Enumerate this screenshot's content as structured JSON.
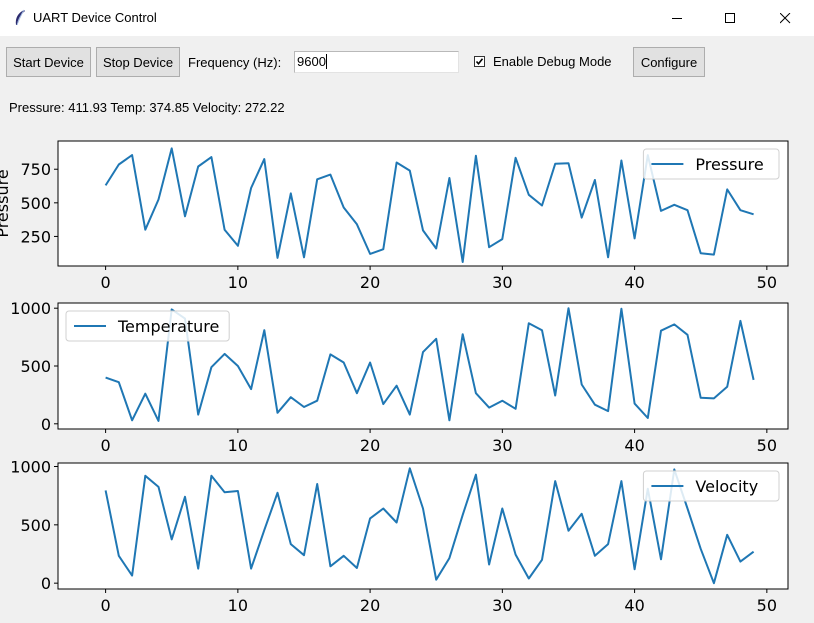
{
  "window": {
    "title": "UART Device Control",
    "icon": "feather-icon"
  },
  "toolbar": {
    "start_label": "Start Device",
    "stop_label": "Stop Device",
    "frequency_label": "Frequency (Hz):",
    "frequency_value": "9600",
    "debug_label": "Enable Debug Mode",
    "debug_checked": true,
    "configure_label": "Configure"
  },
  "status_text": "Pressure: 411.93 Temp: 374.85 Velocity: 272.22",
  "colors": {
    "line": "#1f77b4",
    "background": "#f0f0f0",
    "plot_bg": "#ffffff"
  },
  "chart_data": [
    {
      "type": "line",
      "ylabel": "Pressure",
      "legend": "Pressure",
      "legend_position": "top-right",
      "xlim": [
        -3.6,
        51.6
      ],
      "ylim": [
        30,
        960
      ],
      "xticks": [
        0,
        10,
        20,
        30,
        40,
        50
      ],
      "yticks": [
        250,
        500,
        750
      ],
      "x": [
        0,
        1,
        2,
        3,
        4,
        5,
        6,
        7,
        8,
        9,
        10,
        11,
        12,
        13,
        14,
        15,
        16,
        17,
        18,
        19,
        20,
        21,
        22,
        23,
        24,
        25,
        26,
        27,
        28,
        29,
        30,
        31,
        32,
        33,
        34,
        35,
        36,
        37,
        38,
        39,
        40,
        41,
        42,
        43,
        44,
        45,
        46,
        47,
        48,
        49
      ],
      "values": [
        630,
        785,
        855,
        300,
        525,
        905,
        400,
        770,
        840,
        300,
        180,
        610,
        825,
        90,
        570,
        95,
        675,
        710,
        465,
        340,
        120,
        155,
        800,
        740,
        295,
        160,
        685,
        60,
        850,
        170,
        230,
        835,
        560,
        480,
        790,
        795,
        390,
        670,
        95,
        815,
        235,
        855,
        440,
        485,
        445,
        125,
        115,
        600,
        445,
        415
      ]
    },
    {
      "type": "line",
      "legend": "Temperature",
      "legend_position": "top-left",
      "xlim": [
        -3.6,
        51.6
      ],
      "ylim": [
        -45,
        1045
      ],
      "xticks": [
        0,
        10,
        20,
        30,
        40,
        50
      ],
      "yticks": [
        0,
        500,
        1000
      ],
      "x": [
        0,
        1,
        2,
        3,
        4,
        5,
        6,
        7,
        8,
        9,
        10,
        11,
        12,
        13,
        14,
        15,
        16,
        17,
        18,
        19,
        20,
        21,
        22,
        23,
        24,
        25,
        26,
        27,
        28,
        29,
        30,
        31,
        32,
        33,
        34,
        35,
        36,
        37,
        38,
        39,
        40,
        41,
        42,
        43,
        44,
        45,
        46,
        47,
        48,
        49
      ],
      "values": [
        400,
        360,
        30,
        260,
        25,
        990,
        910,
        80,
        490,
        605,
        500,
        300,
        810,
        95,
        230,
        145,
        200,
        600,
        530,
        265,
        530,
        170,
        330,
        80,
        620,
        735,
        30,
        775,
        265,
        140,
        200,
        130,
        870,
        810,
        245,
        1000,
        340,
        165,
        110,
        995,
        175,
        50,
        805,
        860,
        770,
        225,
        220,
        320,
        890,
        380
      ]
    },
    {
      "type": "line",
      "legend": "Velocity",
      "legend_position": "top-right",
      "xlim": [
        -3.6,
        51.6
      ],
      "ylim": [
        -50,
        1030
      ],
      "xticks": [
        0,
        10,
        20,
        30,
        40,
        50
      ],
      "yticks": [
        0,
        500,
        1000
      ],
      "x": [
        0,
        1,
        2,
        3,
        4,
        5,
        6,
        7,
        8,
        9,
        10,
        11,
        12,
        13,
        14,
        15,
        16,
        17,
        18,
        19,
        20,
        21,
        22,
        23,
        24,
        25,
        26,
        27,
        28,
        29,
        30,
        31,
        32,
        33,
        34,
        35,
        36,
        37,
        38,
        39,
        40,
        41,
        42,
        43,
        44,
        45,
        46,
        47,
        48,
        49
      ],
      "values": [
        795,
        235,
        65,
        920,
        825,
        375,
        740,
        125,
        920,
        780,
        790,
        125,
        455,
        775,
        335,
        240,
        850,
        145,
        235,
        130,
        555,
        640,
        520,
        985,
        640,
        30,
        215,
        585,
        930,
        160,
        640,
        245,
        40,
        200,
        875,
        450,
        595,
        235,
        335,
        875,
        120,
        810,
        205,
        975,
        640,
        295,
        0,
        415,
        185,
        270
      ]
    }
  ]
}
